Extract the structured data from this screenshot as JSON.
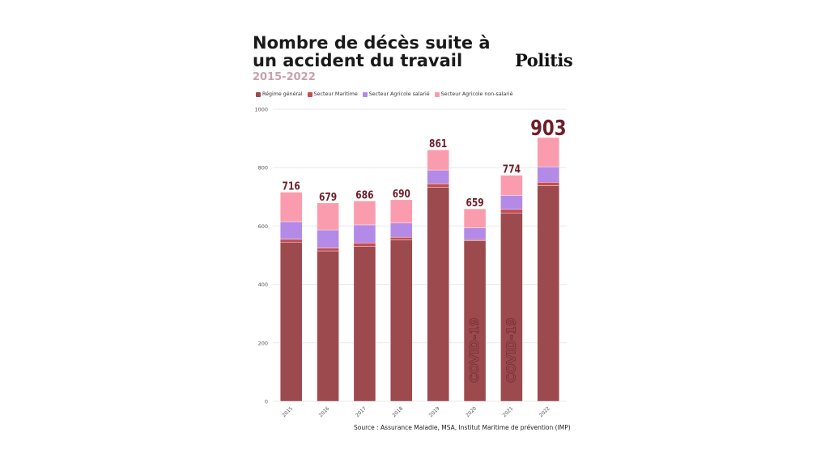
{
  "header": {
    "title": "Nombre de décès suite à un accident du travail",
    "subtitle": "2015-2022",
    "brand": "Politis"
  },
  "source": "Source : Assurance Maladie, MSA, Institut Maritime de prévention (IMP)",
  "colors": {
    "regime_general": "#9c4a4e",
    "secteur_maritime": "#c84d50",
    "secteur_agricole_salarie": "#b38ae6",
    "secteur_agricole_non_salarie": "#fb9cae",
    "total_label": "#6e1f2a",
    "grid": "#e9e9e9",
    "axis_text": "#555555"
  },
  "chart_data": {
    "type": "bar",
    "stacked": true,
    "categories": [
      "2015",
      "2016",
      "2017",
      "2018",
      "2019",
      "2020",
      "2021",
      "2022"
    ],
    "series": [
      {
        "name": "Régime général",
        "values": [
          545,
          515,
          530,
          552,
          733,
          550,
          645,
          738
        ]
      },
      {
        "name": "Secteur Maritime",
        "values": [
          10,
          10,
          12,
          10,
          12,
          4,
          12,
          12
        ]
      },
      {
        "name": "Secteur Agricole salarié",
        "values": [
          60,
          62,
          62,
          48,
          47,
          40,
          48,
          53
        ]
      },
      {
        "name": "Secteur Agricole non-salarié",
        "values": [
          101,
          92,
          82,
          80,
          69,
          65,
          69,
          100
        ]
      }
    ],
    "totals": [
      "716",
      "679",
      "686",
      "690",
      "861",
      "659",
      "774",
      "903"
    ],
    "annotations": [
      {
        "category": "2020",
        "text": "COVID-19"
      },
      {
        "category": "2021",
        "text": "COVID-19"
      }
    ],
    "y_ticks": [
      "0",
      "200",
      "400",
      "600",
      "800",
      "1000"
    ],
    "ylim": [
      0,
      1000
    ],
    "grid": true,
    "legend_position": "top-left"
  }
}
